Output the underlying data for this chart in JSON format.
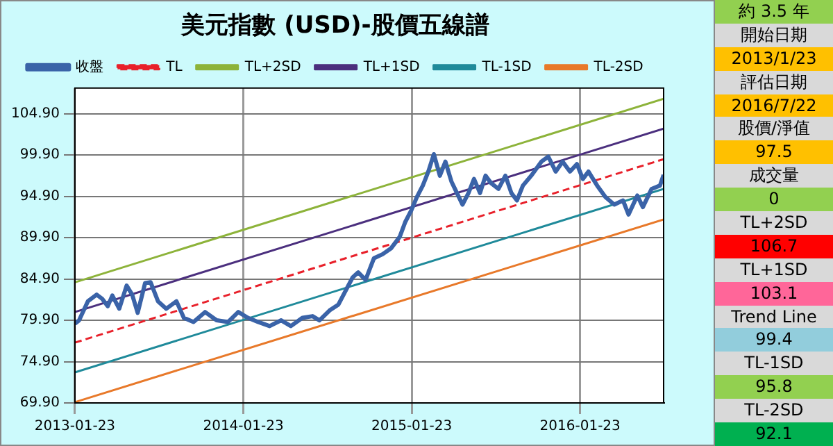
{
  "chart_data": [
    {
      "type": "line",
      "title": "美元指數 (USD)-股價五線譜",
      "legend": "top",
      "grid": true,
      "marker": "none",
      "xlim": [
        "2013-01-23",
        "2016-07-22"
      ],
      "xticks": [
        "2013-01-23",
        "2014-01-23",
        "2015-01-23",
        "2016-01-23"
      ],
      "ylim": [
        69.9,
        108
      ],
      "yticks": [
        {
          "value": 69.9,
          "label": "69.90"
        },
        {
          "value": 74.9,
          "label": "74.90"
        },
        {
          "value": 79.9,
          "label": "79.90"
        },
        {
          "value": 84.9,
          "label": "84.90"
        },
        {
          "value": 89.9,
          "label": "89.90"
        },
        {
          "value": 94.9,
          "label": "94.90"
        },
        {
          "value": 99.9,
          "label": "99.90"
        },
        {
          "value": 104.9,
          "label": "104.90"
        }
      ],
      "series": [
        {
          "name": "收盤",
          "color": "#3a63a8",
          "line_style": "solid",
          "x": [
            "2013-01-23",
            "2013-02-01",
            "2013-02-20",
            "2013-03-11",
            "2013-03-23",
            "2013-04-04",
            "2013-04-14",
            "2013-04-29",
            "2013-05-15",
            "2013-05-27",
            "2013-06-08",
            "2013-06-24",
            "2013-07-06",
            "2013-07-22",
            "2013-08-09",
            "2013-08-31",
            "2013-09-16",
            "2013-10-07",
            "2013-11-01",
            "2013-11-26",
            "2013-12-21",
            "2014-01-12",
            "2014-02-02",
            "2014-02-24",
            "2014-03-21",
            "2014-04-15",
            "2014-05-06",
            "2014-05-31",
            "2014-06-22",
            "2014-07-07",
            "2014-07-29",
            "2014-08-17",
            "2014-09-01",
            "2014-09-17",
            "2014-09-29",
            "2014-10-15",
            "2014-11-02",
            "2014-11-21",
            "2014-12-09",
            "2014-12-28",
            "2015-01-09",
            "2015-01-22",
            "2015-02-03",
            "2015-02-16",
            "2015-02-28",
            "2015-03-12",
            "2015-03-25",
            "2015-04-06",
            "2015-04-19",
            "2015-05-01",
            "2015-05-13",
            "2015-05-26",
            "2015-06-07",
            "2015-06-20",
            "2015-07-02",
            "2015-07-14",
            "2015-07-30",
            "2015-08-14",
            "2015-08-27",
            "2015-09-08",
            "2015-09-21",
            "2015-10-09",
            "2015-10-31",
            "2015-11-15",
            "2015-12-01",
            "2015-12-16",
            "2016-01-01",
            "2016-01-16",
            "2016-01-29",
            "2016-02-10",
            "2016-02-29",
            "2016-03-18",
            "2016-04-06",
            "2016-04-25",
            "2016-05-07",
            "2016-05-26",
            "2016-06-07",
            "2016-06-26",
            "2016-07-14",
            "2016-07-22"
          ],
          "values": [
            79.5,
            79.9,
            82.2,
            83.0,
            82.5,
            81.6,
            82.9,
            81.3,
            84.1,
            83.0,
            80.8,
            84.4,
            84.5,
            82.2,
            81.3,
            82.2,
            80.2,
            79.7,
            80.9,
            79.9,
            79.7,
            80.9,
            80.2,
            79.7,
            79.2,
            79.9,
            79.2,
            80.2,
            80.4,
            79.9,
            81.1,
            81.8,
            83.4,
            85.1,
            85.7,
            84.8,
            87.4,
            87.9,
            88.6,
            90.0,
            91.8,
            93.2,
            94.8,
            96.2,
            97.9,
            100.0,
            97.4,
            99.1,
            96.7,
            95.3,
            93.9,
            95.3,
            97.0,
            95.3,
            97.4,
            96.5,
            95.8,
            97.4,
            95.3,
            94.4,
            96.2,
            97.4,
            99.1,
            99.7,
            97.9,
            99.1,
            97.9,
            98.8,
            97.0,
            97.9,
            96.2,
            94.8,
            93.9,
            94.4,
            92.7,
            95.0,
            93.6,
            95.8,
            96.2,
            97.5
          ]
        },
        {
          "name": "TL",
          "color": "#e8202a",
          "line_style": "dashed",
          "x": [
            "2013-01-23",
            "2016-07-22"
          ],
          "values": [
            77.2,
            99.4
          ]
        },
        {
          "name": "TL+2SD",
          "color": "#8db33a",
          "line_style": "solid",
          "x": [
            "2013-01-23",
            "2016-07-22"
          ],
          "values": [
            84.5,
            106.7
          ]
        },
        {
          "name": "TL+1SD",
          "color": "#4b2f7e",
          "line_style": "solid",
          "x": [
            "2013-01-23",
            "2016-07-22"
          ],
          "values": [
            80.9,
            103.1
          ]
        },
        {
          "name": "TL-1SD",
          "color": "#1f8a9a",
          "line_style": "solid",
          "x": [
            "2013-01-23",
            "2016-07-22"
          ],
          "values": [
            73.6,
            95.8
          ]
        },
        {
          "name": "TL-2SD",
          "color": "#e8792a",
          "line_style": "solid",
          "x": [
            "2013-01-23",
            "2016-07-22"
          ],
          "values": [
            70.0,
            92.1
          ]
        }
      ],
      "annotations": [
        "約 3.5 年",
        "開始日期",
        "2013/1/23",
        "評估日期",
        "2016/7/22",
        "股價/淨值",
        "97.5",
        "成交量",
        "0",
        "TL+2SD",
        "106.7",
        "TL+1SD",
        "103.1",
        "Trend Line",
        "99.4",
        "TL-1SD",
        "95.8",
        "TL-2SD",
        "92.1"
      ]
    }
  ]
}
